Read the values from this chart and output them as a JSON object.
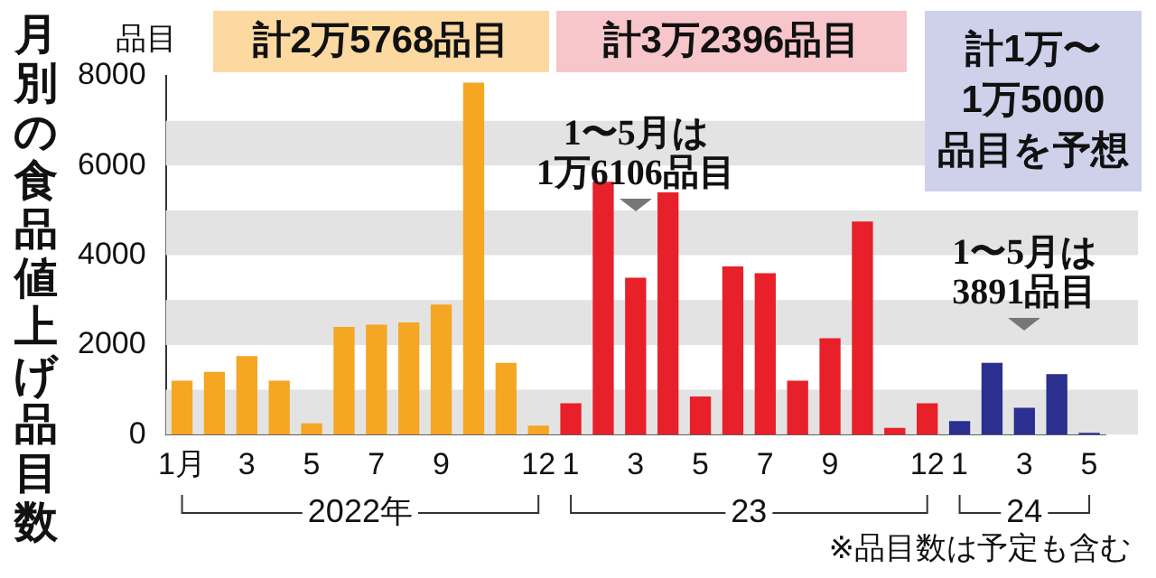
{
  "chart_data": {
    "type": "bar",
    "title": "月別の食品値上げ品目数",
    "ylabel": "品目",
    "categories": [
      "1月",
      null,
      "3",
      null,
      "5",
      null,
      "7",
      null,
      "9",
      null,
      null,
      "12",
      "1",
      null,
      "3",
      null,
      "5",
      null,
      "7",
      null,
      "9",
      null,
      null,
      "12",
      "1",
      null,
      "3",
      null,
      "5"
    ],
    "values": [
      1200,
      1400,
      1750,
      1200,
      250,
      2400,
      2450,
      2500,
      2900,
      7850,
      1600,
      200,
      700,
      5640,
      3500,
      5400,
      850,
      3750,
      3600,
      1200,
      2150,
      4750,
      150,
      700,
      300,
      1600,
      600,
      1350,
      40
    ],
    "colors": [
      "#f5a623",
      "#f5a623",
      "#f5a623",
      "#f5a623",
      "#f5a623",
      "#f5a623",
      "#f5a623",
      "#f5a623",
      "#f5a623",
      "#f5a623",
      "#f5a623",
      "#f5a623",
      "#e8202a",
      "#e8202a",
      "#e8202a",
      "#e8202a",
      "#e8202a",
      "#e8202a",
      "#e8202a",
      "#e8202a",
      "#e8202a",
      "#e8202a",
      "#e8202a",
      "#e8202a",
      "#2b2f8f",
      "#2b2f8f",
      "#2b2f8f",
      "#2b2f8f",
      "#2b2f8f"
    ],
    "ylim": [
      0,
      8000
    ],
    "yticks": [
      0,
      2000,
      4000,
      6000,
      8000
    ],
    "bands": [
      {
        "axis": "y",
        "from": 0,
        "to": 1000,
        "color": "#e3e3e3"
      },
      {
        "axis": "y",
        "from": 2000,
        "to": 3000,
        "color": "#e3e3e3"
      },
      {
        "axis": "y",
        "from": 4000,
        "to": 5000,
        "color": "#e3e3e3"
      },
      {
        "axis": "y",
        "from": 6000,
        "to": 7000,
        "color": "#e3e3e3"
      }
    ],
    "annotations": [
      "計2万5768品目",
      "計3万2396品目",
      "計1万〜\n1万5000\n品目を予想",
      "1〜5月は\n1万6106品目",
      "1〜5月は\n3891品目",
      "2022年",
      "23",
      "24",
      "※品目数は予定も含む"
    ]
  }
}
